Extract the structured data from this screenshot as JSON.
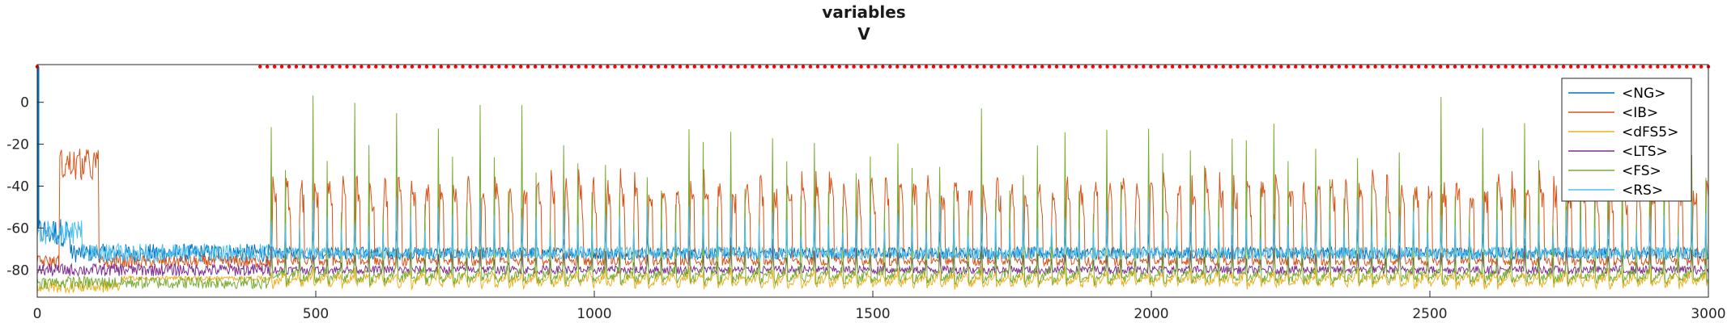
{
  "chart_data": {
    "type": "line",
    "title": "variables",
    "subtitle": "V",
    "xlabel": "",
    "ylabel": "",
    "xlim": [
      0,
      3000
    ],
    "ylim": [
      -93,
      18
    ],
    "x_ticks": [
      0,
      500,
      1000,
      1500,
      2000,
      2500,
      3000
    ],
    "y_ticks": [
      0,
      -20,
      -40,
      -60,
      -80
    ],
    "grid": false,
    "legend_position": "top-right",
    "series": [
      {
        "name": "<NG>",
        "color": "#0072BD",
        "baseline": -72,
        "noise": 3,
        "spike_peak": -60,
        "period": 25
      },
      {
        "name": "<IB>",
        "color": "#D95319",
        "baseline": -76,
        "noise": 2,
        "spike_peak": -35,
        "period": 25
      },
      {
        "name": "<dFS5>",
        "color": "#EDB120",
        "baseline": -88,
        "noise": 2,
        "spike_peak": -78,
        "period": 25
      },
      {
        "name": "<LTS>",
        "color": "#7E2F8E",
        "baseline": -80,
        "noise": 2,
        "spike_peak": -68,
        "period": 25
      },
      {
        "name": "<FS>",
        "color": "#77AC30",
        "baseline": -86,
        "noise": 2,
        "spike_peak": 5,
        "period": 25
      },
      {
        "name": "<RS>",
        "color": "#4DBEEE",
        "baseline": -72,
        "noise": 3,
        "spike_peak": -45,
        "period": 25
      }
    ],
    "marker_series": {
      "color": "#FF0000",
      "y": 17,
      "x_start": 400,
      "x_end": 3000,
      "step": 13
    }
  }
}
